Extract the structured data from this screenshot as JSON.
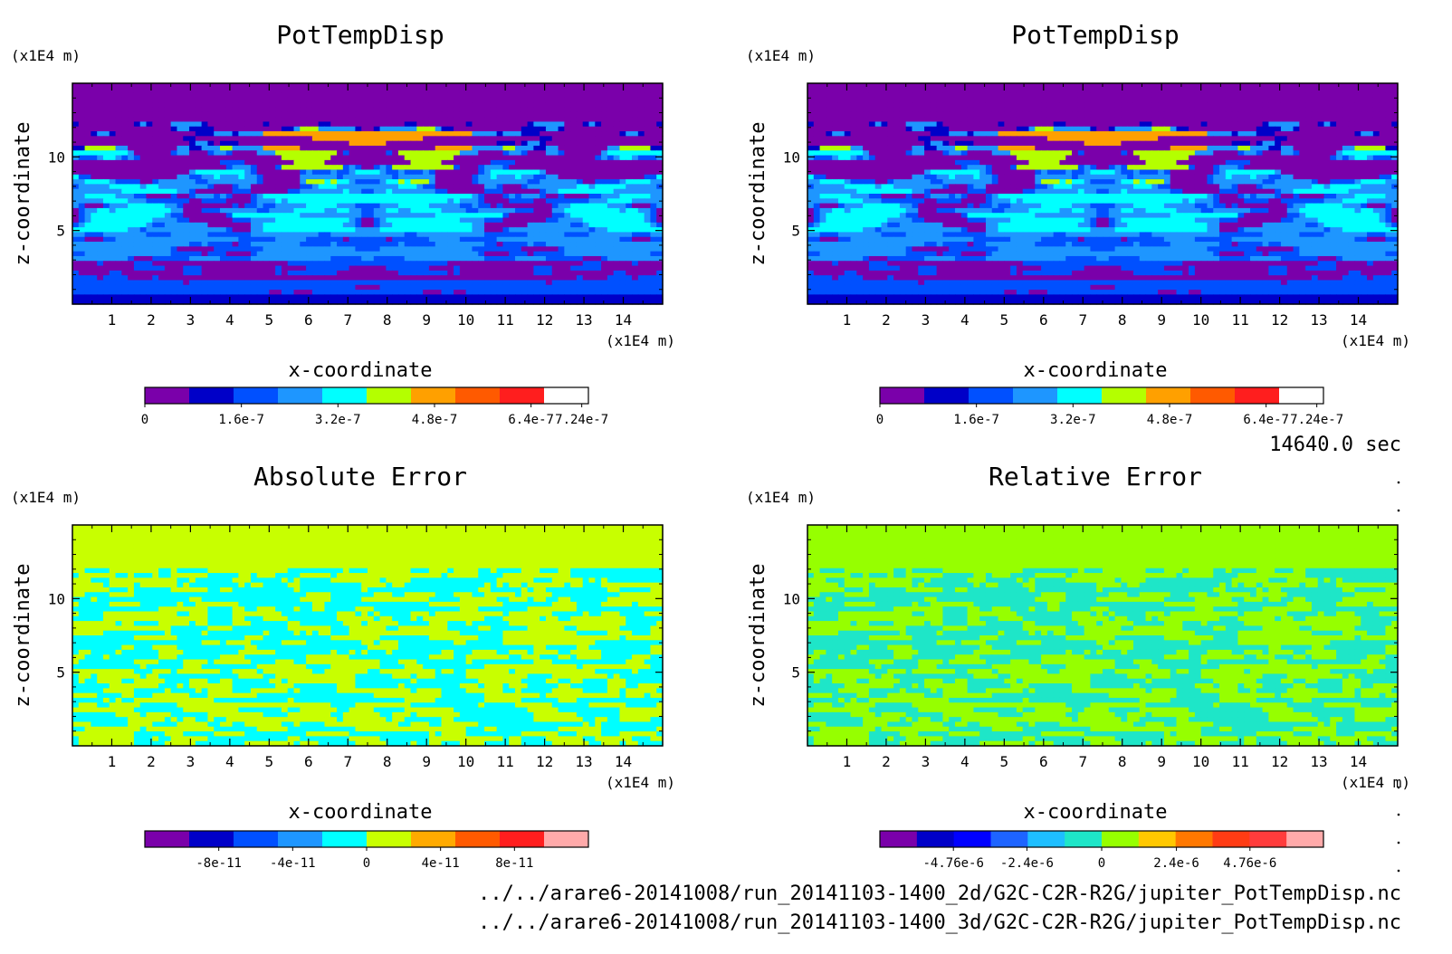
{
  "panels": [
    {
      "title": "PotTempDisp",
      "zunit": "(x1E4 m)",
      "xunit": "(x1E4 m)",
      "xlabel": "x-coordinate",
      "ylabel": "z-coordinate",
      "colorbar_labels": [
        "0",
        "1.6e-7",
        "3.2e-7",
        "4.8e-7",
        "6.4e-7",
        "7.24e-7"
      ],
      "colorbar_colors": [
        "#7a00aa",
        "#0000c8",
        "#0050ff",
        "#1e96ff",
        "#00ffff",
        "#b4ff00",
        "#ffa000",
        "#ff5a00",
        "#ff1e1e",
        "#ffffff"
      ]
    },
    {
      "title": "PotTempDisp",
      "zunit": "(x1E4 m)",
      "xunit": "(x1E4 m)",
      "xlabel": "x-coordinate",
      "ylabel": "z-coordinate",
      "colorbar_labels": [
        "0",
        "1.6e-7",
        "3.2e-7",
        "4.8e-7",
        "6.4e-7",
        "7.24e-7"
      ],
      "colorbar_colors": [
        "#7a00aa",
        "#0000c8",
        "#0050ff",
        "#1e96ff",
        "#00ffff",
        "#b4ff00",
        "#ffa000",
        "#ff5a00",
        "#ff1e1e",
        "#ffffff"
      ]
    },
    {
      "title": "Absolute Error",
      "zunit": "(x1E4 m)",
      "xunit": "(x1E4 m)",
      "xlabel": "x-coordinate",
      "ylabel": "z-coordinate",
      "colorbar_labels": [
        "-8e-11",
        "-4e-11",
        "0",
        "4e-11",
        "8e-11"
      ],
      "colorbar_colors": [
        "#7a00aa",
        "#0000c8",
        "#0050ff",
        "#1e96ff",
        "#00ffff",
        "#c8ff00",
        "#ffaa00",
        "#ff5a00",
        "#ff1e1e",
        "#ffaaaa"
      ]
    },
    {
      "title": "Relative Error",
      "zunit": "(x1E4 m)",
      "xunit": "(x1E4 m)",
      "xlabel": "x-coordinate",
      "ylabel": "z-coordinate",
      "colorbar_labels": [
        "-4.76e-6",
        "-2.4e-6",
        "0",
        "2.4e-6",
        "4.76e-6"
      ],
      "colorbar_colors": [
        "#7a00aa",
        "#0000c8",
        "#0000ff",
        "#1e64ff",
        "#1ebeff",
        "#1ee6c8",
        "#96ff00",
        "#ffc800",
        "#ff7800",
        "#ff3c14",
        "#ff3c3c",
        "#ffaaaa"
      ]
    }
  ],
  "time_label": "14640.0 sec",
  "footer_lines": [
    "../../arare6-20141008/run_20141103-1400_2d/G2C-C2R-R2G/jupiter_PotTempDisp.nc",
    "../../arare6-20141008/run_20141103-1400_3d/G2C-C2R-R2G/jupiter_PotTempDisp.nc"
  ],
  "chart_data": [
    {
      "type": "heatmap",
      "title": "PotTempDisp",
      "xlabel": "x-coordinate",
      "ylabel": "z-coordinate",
      "x_unit": "(x1E4 m)",
      "z_unit": "(x1E4 m)",
      "xlim": [
        0,
        15
      ],
      "ylim": [
        0,
        15
      ],
      "x_ticks": [
        1,
        2,
        3,
        4,
        5,
        6,
        7,
        8,
        9,
        10,
        11,
        12,
        13,
        14
      ],
      "y_ticks": [
        5,
        10
      ],
      "color_levels": [
        0,
        1.6e-07,
        3.2e-07,
        4.8e-07,
        6.4e-07,
        7.24e-07
      ],
      "colorbar_tick_labels": [
        "0",
        "1.6e-7",
        "3.2e-7",
        "4.8e-7",
        "6.4e-7",
        "7.24e-7"
      ]
    },
    {
      "type": "heatmap",
      "title": "PotTempDisp",
      "xlabel": "x-coordinate",
      "ylabel": "z-coordinate",
      "x_unit": "(x1E4 m)",
      "z_unit": "(x1E4 m)",
      "xlim": [
        0,
        15
      ],
      "ylim": [
        0,
        15
      ],
      "x_ticks": [
        1,
        2,
        3,
        4,
        5,
        6,
        7,
        8,
        9,
        10,
        11,
        12,
        13,
        14
      ],
      "y_ticks": [
        5,
        10
      ],
      "color_levels": [
        0,
        1.6e-07,
        3.2e-07,
        4.8e-07,
        6.4e-07,
        7.24e-07
      ],
      "colorbar_tick_labels": [
        "0",
        "1.6e-7",
        "3.2e-7",
        "4.8e-7",
        "6.4e-7",
        "7.24e-7"
      ]
    },
    {
      "type": "heatmap",
      "title": "Absolute Error",
      "xlabel": "x-coordinate",
      "ylabel": "z-coordinate",
      "x_unit": "(x1E4 m)",
      "z_unit": "(x1E4 m)",
      "xlim": [
        0,
        15
      ],
      "ylim": [
        0,
        15
      ],
      "x_ticks": [
        1,
        2,
        3,
        4,
        5,
        6,
        7,
        8,
        9,
        10,
        11,
        12,
        13,
        14
      ],
      "y_ticks": [
        5,
        10
      ],
      "color_levels": [
        -8e-11,
        -4e-11,
        0,
        4e-11,
        8e-11
      ],
      "colorbar_tick_labels": [
        "-8e-11",
        "-4e-11",
        "0",
        "4e-11",
        "8e-11"
      ]
    },
    {
      "type": "heatmap",
      "title": "Relative Error",
      "xlabel": "x-coordinate",
      "ylabel": "z-coordinate",
      "x_unit": "(x1E4 m)",
      "z_unit": "(x1E4 m)",
      "xlim": [
        0,
        15
      ],
      "ylim": [
        0,
        15
      ],
      "x_ticks": [
        1,
        2,
        3,
        4,
        5,
        6,
        7,
        8,
        9,
        10,
        11,
        12,
        13,
        14
      ],
      "y_ticks": [
        5,
        10
      ],
      "color_levels": [
        -4.76e-06,
        -2.4e-06,
        0,
        2.4e-06,
        4.76e-06
      ],
      "colorbar_tick_labels": [
        "-4.76e-6",
        "-2.4e-6",
        "0",
        "2.4e-6",
        "4.76e-6"
      ]
    }
  ]
}
